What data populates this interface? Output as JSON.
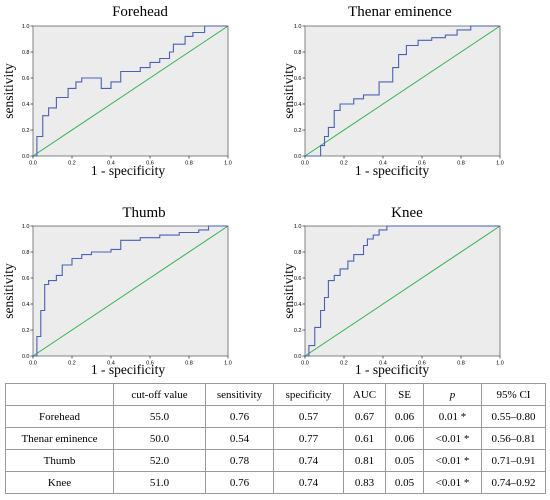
{
  "chart_data": [
    {
      "type": "line",
      "title": "Forehead",
      "xlabel": "1 - specificity",
      "ylabel": "sensitivity",
      "xlim": [
        0,
        1
      ],
      "ylim": [
        0,
        1
      ],
      "xticks": [
        "0.0",
        "0.2",
        "0.4",
        "0.6",
        "0.8",
        "1.0"
      ],
      "yticks": [
        "0.0",
        "0.2",
        "0.4",
        "0.6",
        "0.8",
        "1.0"
      ],
      "grid": false,
      "series": [
        {
          "x": [
            0,
            0.02,
            0.02,
            0.05,
            0.05,
            0.08,
            0.08,
            0.12,
            0.12,
            0.18,
            0.18,
            0.22,
            0.22,
            0.25,
            0.25,
            0.35,
            0.35,
            0.4,
            0.4,
            0.45,
            0.45,
            0.55,
            0.55,
            0.6,
            0.6,
            0.65,
            0.65,
            0.7,
            0.7,
            0.72,
            0.72,
            0.78,
            0.78,
            0.82,
            0.82,
            0.88,
            0.88,
            0.92,
            0.92,
            1.0
          ],
          "y": [
            0,
            0,
            0.15,
            0.15,
            0.31,
            0.31,
            0.37,
            0.37,
            0.45,
            0.45,
            0.52,
            0.52,
            0.57,
            0.57,
            0.6,
            0.6,
            0.52,
            0.52,
            0.57,
            0.57,
            0.65,
            0.65,
            0.68,
            0.68,
            0.72,
            0.72,
            0.75,
            0.75,
            0.8,
            0.8,
            0.86,
            0.86,
            0.92,
            0.92,
            0.95,
            0.95,
            1.0,
            1.0,
            1.0,
            1.0
          ]
        },
        {
          "x": [
            0,
            1
          ],
          "y": [
            0,
            1
          ]
        }
      ]
    },
    {
      "type": "line",
      "title": "Thenar eminence",
      "xlabel": "1 - specificity",
      "ylabel": "sensitivity",
      "xlim": [
        0,
        1
      ],
      "ylim": [
        0,
        1
      ],
      "xticks": [
        "0.0",
        "0.2",
        "0.4",
        "0.6",
        "0.8",
        "1.0"
      ],
      "yticks": [
        "0.0",
        "0.2",
        "0.4",
        "0.6",
        "0.8",
        "1.0"
      ],
      "grid": false,
      "series": [
        {
          "x": [
            0,
            0.08,
            0.08,
            0.1,
            0.1,
            0.12,
            0.12,
            0.15,
            0.15,
            0.18,
            0.18,
            0.25,
            0.25,
            0.3,
            0.3,
            0.38,
            0.38,
            0.45,
            0.45,
            0.48,
            0.48,
            0.52,
            0.52,
            0.58,
            0.58,
            0.65,
            0.65,
            0.72,
            0.72,
            0.78,
            0.78,
            0.85,
            0.85,
            0.88,
            0.88,
            1.0
          ],
          "y": [
            0,
            0,
            0.08,
            0.08,
            0.15,
            0.15,
            0.22,
            0.22,
            0.35,
            0.35,
            0.4,
            0.4,
            0.44,
            0.44,
            0.47,
            0.47,
            0.57,
            0.57,
            0.68,
            0.68,
            0.78,
            0.78,
            0.85,
            0.85,
            0.89,
            0.89,
            0.91,
            0.91,
            0.93,
            0.93,
            0.97,
            0.97,
            1.0,
            1.0,
            1.0,
            1.0
          ]
        },
        {
          "x": [
            0,
            1
          ],
          "y": [
            0,
            1
          ]
        }
      ]
    },
    {
      "type": "line",
      "title": "Thumb",
      "xlabel": "1 - specificity",
      "ylabel": "sensitivity",
      "xlim": [
        0,
        1
      ],
      "ylim": [
        0,
        1
      ],
      "xticks": [
        "0.0",
        "0.2",
        "0.4",
        "0.6",
        "0.8",
        "1.0"
      ],
      "yticks": [
        "0.0",
        "0.2",
        "0.4",
        "0.6",
        "0.8",
        "1.0"
      ],
      "grid": false,
      "series": [
        {
          "x": [
            0,
            0.02,
            0.02,
            0.04,
            0.04,
            0.06,
            0.06,
            0.08,
            0.08,
            0.12,
            0.12,
            0.15,
            0.15,
            0.2,
            0.2,
            0.25,
            0.25,
            0.3,
            0.3,
            0.4,
            0.4,
            0.45,
            0.45,
            0.55,
            0.55,
            0.65,
            0.65,
            0.75,
            0.75,
            0.85,
            0.85,
            0.9,
            0.9,
            1.0
          ],
          "y": [
            0,
            0,
            0.15,
            0.15,
            0.35,
            0.35,
            0.55,
            0.55,
            0.58,
            0.58,
            0.62,
            0.62,
            0.7,
            0.7,
            0.75,
            0.75,
            0.78,
            0.78,
            0.8,
            0.8,
            0.82,
            0.82,
            0.89,
            0.89,
            0.91,
            0.91,
            0.93,
            0.93,
            0.95,
            0.95,
            0.97,
            0.97,
            1.0,
            1.0
          ]
        },
        {
          "x": [
            0,
            1
          ],
          "y": [
            0,
            1
          ]
        }
      ]
    },
    {
      "type": "line",
      "title": "Knee",
      "xlabel": "1 - specificity",
      "ylabel": "sensitivity",
      "xlim": [
        0,
        1
      ],
      "ylim": [
        0,
        1
      ],
      "xticks": [
        "0.0",
        "0.2",
        "0.4",
        "0.6",
        "0.8",
        "1.0"
      ],
      "yticks": [
        "0.0",
        "0.2",
        "0.4",
        "0.6",
        "0.8",
        "1.0"
      ],
      "grid": false,
      "series": [
        {
          "x": [
            0,
            0.02,
            0.02,
            0.05,
            0.05,
            0.08,
            0.08,
            0.1,
            0.1,
            0.12,
            0.12,
            0.15,
            0.15,
            0.18,
            0.18,
            0.22,
            0.22,
            0.25,
            0.25,
            0.3,
            0.3,
            0.32,
            0.32,
            0.35,
            0.35,
            0.38,
            0.38,
            0.42,
            0.42,
            1.0
          ],
          "y": [
            0,
            0,
            0.08,
            0.08,
            0.22,
            0.22,
            0.35,
            0.35,
            0.45,
            0.45,
            0.58,
            0.58,
            0.62,
            0.62,
            0.67,
            0.67,
            0.73,
            0.73,
            0.78,
            0.78,
            0.85,
            0.85,
            0.9,
            0.9,
            0.93,
            0.93,
            0.97,
            0.97,
            1.0,
            1.0
          ]
        },
        {
          "x": [
            0,
            1
          ],
          "y": [
            0,
            1
          ]
        }
      ]
    }
  ],
  "table": {
    "headers": [
      "",
      "cut-off value",
      "sensitivity",
      "specificity",
      "AUC",
      "SE",
      "p",
      "95% CI"
    ],
    "rows": [
      [
        "Forehead",
        "55.0",
        "0.76",
        "0.57",
        "0.67",
        "0.06",
        "0.01 *",
        "0.55–0.80"
      ],
      [
        "Thenar eminence",
        "50.0",
        "0.54",
        "0.77",
        "0.61",
        "0.06",
        "<0.01 *",
        "0.56–0.81"
      ],
      [
        "Thumb",
        "52.0",
        "0.78",
        "0.74",
        "0.81",
        "0.05",
        "<0.01 *",
        "0.71–0.91"
      ],
      [
        "Knee",
        "51.0",
        "0.76",
        "0.74",
        "0.83",
        "0.05",
        "<0.01 *",
        "0.74–0.92"
      ]
    ]
  },
  "colors": {
    "roc": "#4a5fb8",
    "reference": "#2db34a",
    "plot_bg": "#ececec"
  }
}
